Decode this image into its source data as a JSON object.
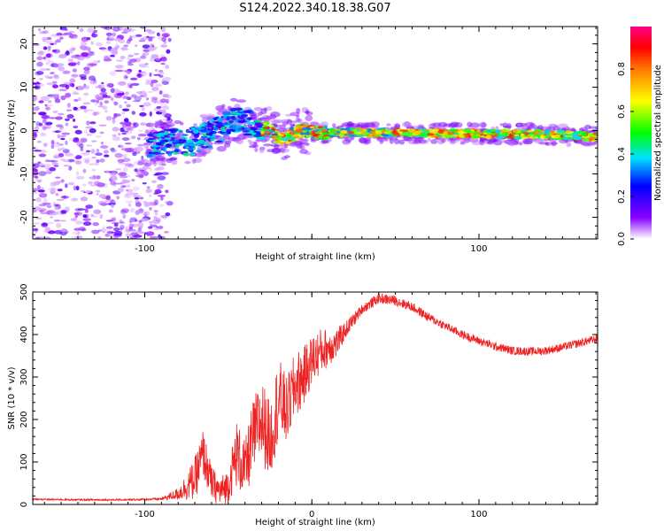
{
  "chart_data": [
    {
      "type": "heatmap",
      "title": "S124.2022.340.18.38.G07",
      "xlabel": "Height of straight line (km)",
      "ylabel": "Frequency (Hz)",
      "xlim": [
        -167,
        171
      ],
      "ylim": [
        -25,
        24
      ],
      "xticks": [
        -100,
        0,
        100
      ],
      "xtick_labels": [
        "-100",
        "",
        "100"
      ],
      "yticks": [
        -20,
        -10,
        0,
        10,
        20
      ],
      "ytick_labels": [
        "-20",
        "-10",
        "0",
        "10",
        "20"
      ],
      "grid": false,
      "ridge": {
        "x": [
          -95,
          -85,
          -75,
          -65,
          -55,
          -45,
          -38,
          -32,
          -25,
          -20,
          -15,
          -10,
          -5,
          0,
          10,
          30,
          60,
          90,
          120,
          150,
          171
        ],
        "y": [
          -3,
          -2.5,
          -3,
          -1.5,
          0.5,
          2.5,
          2,
          0,
          0.5,
          -2,
          -1.5,
          -0.5,
          0,
          -0.5,
          -0.5,
          -0.5,
          -0.5,
          -0.7,
          -0.8,
          -1,
          -1.5
        ]
      },
      "colorbar": {
        "label": "Normalized spectral amplitude",
        "range": [
          0,
          1
        ],
        "ticks": [
          0.0,
          0.2,
          0.4,
          0.6,
          0.8
        ],
        "tick_labels": [
          "0.0",
          "0.2",
          "0.4",
          "0.6",
          "0.8"
        ]
      }
    },
    {
      "type": "line",
      "xlabel": "Height of straight line (km)",
      "ylabel": "SNR (10 * v/v)",
      "xlim": [
        -167,
        171
      ],
      "ylim": [
        0,
        500
      ],
      "xticks": [
        -100,
        0,
        100
      ],
      "xtick_labels": [
        "-100",
        "0",
        "100"
      ],
      "yticks": [
        0,
        100,
        200,
        300,
        400,
        500
      ],
      "ytick_labels": [
        "0",
        "100",
        "200",
        "300",
        "400",
        "500"
      ],
      "grid": false,
      "color": "#ee2222",
      "x": [
        -167,
        -140,
        -110,
        -90,
        -80,
        -70,
        -65,
        -60,
        -55,
        -50,
        -45,
        -40,
        -35,
        -30,
        -25,
        -20,
        -15,
        -10,
        -5,
        0,
        5,
        10,
        15,
        20,
        30,
        40,
        50,
        60,
        70,
        80,
        90,
        100,
        110,
        120,
        130,
        140,
        150,
        160,
        171
      ],
      "y": [
        12,
        11,
        11,
        13,
        25,
        60,
        120,
        50,
        30,
        45,
        120,
        80,
        160,
        200,
        150,
        250,
        220,
        280,
        300,
        340,
        360,
        370,
        380,
        410,
        460,
        485,
        480,
        465,
        440,
        420,
        400,
        385,
        372,
        362,
        360,
        362,
        370,
        380,
        390
      ],
      "noise": [
        2,
        2,
        2,
        3,
        15,
        50,
        60,
        40,
        35,
        40,
        80,
        70,
        90,
        100,
        90,
        100,
        80,
        80,
        70,
        60,
        55,
        45,
        35,
        20,
        12,
        12,
        12,
        11,
        11,
        10,
        10,
        10,
        10,
        10,
        10,
        10,
        10,
        10,
        10
      ]
    }
  ]
}
